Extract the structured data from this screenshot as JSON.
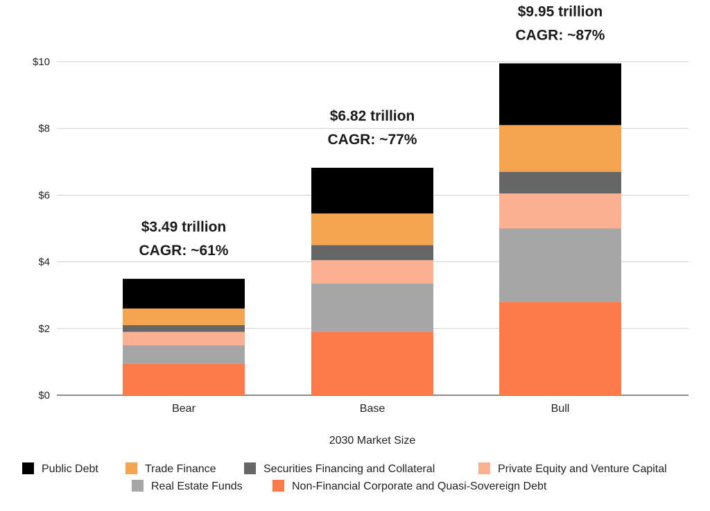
{
  "chart_data": {
    "type": "bar",
    "stacked": true,
    "title": "",
    "xlabel": "2030 Market Size",
    "ylabel": "",
    "ylim": [
      0,
      10
    ],
    "yticks": [
      0,
      2,
      4,
      6,
      8,
      10
    ],
    "ytick_labels": [
      "$0",
      "$2",
      "$4",
      "$6",
      "$8",
      "$10"
    ],
    "grid": true,
    "legend_position": "bottom",
    "categories": [
      "Bear",
      "Base",
      "Bull"
    ],
    "series": [
      {
        "name": "Non-Financial Corporate and Quasi-Sovereign Debt",
        "color": "#fd7a4a",
        "values": [
          0.95,
          1.9,
          2.8
        ]
      },
      {
        "name": "Real Estate Funds",
        "color": "#a6a6a6",
        "values": [
          0.55,
          1.45,
          2.2
        ]
      },
      {
        "name": "Private Equity and Venture Capital",
        "color": "#fbb191",
        "values": [
          0.4,
          0.7,
          1.05
        ]
      },
      {
        "name": "Securities Financing and Collateral",
        "color": "#666666",
        "values": [
          0.2,
          0.45,
          0.65
        ]
      },
      {
        "name": "Trade Finance",
        "color": "#f5a54f",
        "values": [
          0.5,
          0.95,
          1.4
        ]
      },
      {
        "name": "Public Debt",
        "color": "#000000",
        "values": [
          0.89,
          1.37,
          1.85
        ]
      }
    ],
    "legend_order": [
      "Public Debt",
      "Trade Finance",
      "Securities Financing and Collateral",
      "Private Equity and Venture Capital",
      "Real Estate Funds",
      "Non-Financial Corporate and Quasi-Sovereign Debt"
    ],
    "annotations": [
      {
        "category": "Bear",
        "line1": "$3.49 trillion",
        "line2": "CAGR: ~61%"
      },
      {
        "category": "Base",
        "line1": "$6.82 trillion",
        "line2": "CAGR: ~77%"
      },
      {
        "category": "Bull",
        "line1": "$9.95 trillion",
        "line2": "CAGR: ~87%"
      }
    ]
  }
}
